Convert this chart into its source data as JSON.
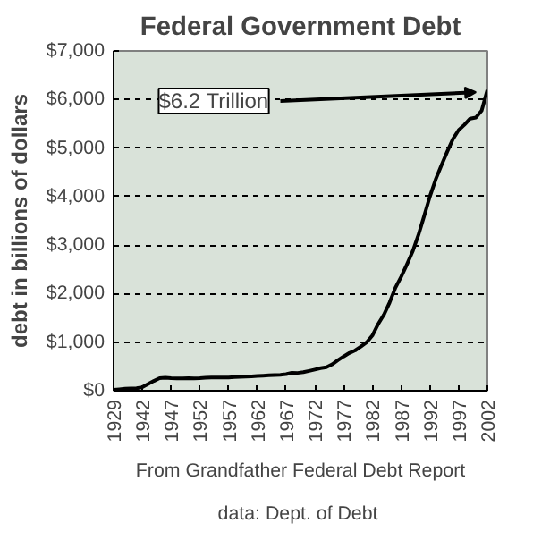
{
  "chart_data": {
    "type": "line",
    "title": "Federal Government Debt",
    "ylabel": "debt in billions of dollars",
    "categories": [
      "1929",
      null,
      null,
      null,
      null,
      "1942",
      null,
      null,
      null,
      null,
      "1947",
      null,
      null,
      null,
      null,
      "1952",
      null,
      null,
      null,
      null,
      "1957",
      null,
      null,
      null,
      null,
      "1962",
      null,
      null,
      null,
      null,
      "1967",
      null,
      null,
      null,
      null,
      "1972",
      null,
      null,
      null,
      null,
      "1977",
      null,
      null,
      null,
      null,
      "1982",
      null,
      null,
      null,
      null,
      "1987",
      null,
      null,
      null,
      null,
      "1992",
      null,
      null,
      null,
      null,
      "1997",
      null,
      null,
      null,
      null,
      "2002"
    ],
    "series": [
      {
        "color": "#000000",
        "values": [
          20,
          30,
          40,
          45,
          50,
          72,
          137,
          201,
          259,
          269,
          258,
          252,
          253,
          257,
          255,
          259,
          266,
          271,
          274,
          273,
          272,
          280,
          287,
          291,
          293,
          303,
          310,
          316,
          322,
          328,
          340,
          369,
          366,
          381,
          408,
          436,
          466,
          484,
          542,
          629,
          706,
          777,
          829,
          909,
          995,
          1137,
          1372,
          1565,
          1818,
          2121,
          2346,
          2601,
          2868,
          3206,
          3598,
          4002,
          4351,
          4643,
          4921,
          5182,
          5369,
          5478,
          5606,
          5629,
          5770,
          6198
        ]
      }
    ],
    "ylim": [
      0,
      7000
    ],
    "yticks": [
      {
        "value": 0,
        "label": "$0"
      },
      {
        "value": 1000,
        "label": "$1,000"
      },
      {
        "value": 2000,
        "label": "$2,000"
      },
      {
        "value": 3000,
        "label": "$3,000"
      },
      {
        "value": 4000,
        "label": "$4,000"
      },
      {
        "value": 5000,
        "label": "$5,000"
      },
      {
        "value": 6000,
        "label": "$6,000"
      },
      {
        "value": 7000,
        "label": "$7,000"
      }
    ],
    "grid": "y",
    "line_style": "solid",
    "annotations": [
      {
        "text": "$6.2 Trillion",
        "x": "2002",
        "y": 6198
      },
      "From Grandfather Federal Debt Report",
      "data:  Dept. of Debt"
    ]
  }
}
